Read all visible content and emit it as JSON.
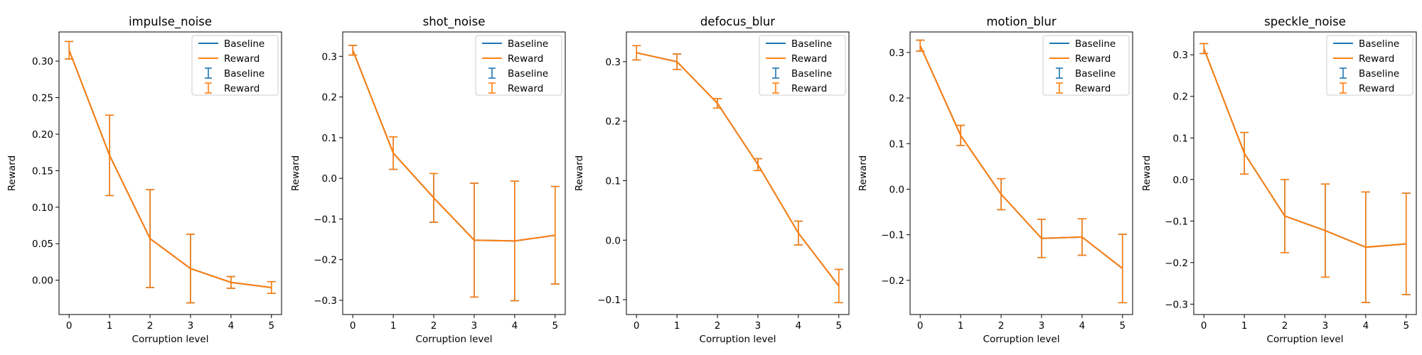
{
  "colors": {
    "baseline": "#1f77b4",
    "reward": "#ff7f0e"
  },
  "chart_data": [
    {
      "type": "line",
      "title": "impulse_noise",
      "xlabel": "Corruption level",
      "ylabel": "Reward",
      "x": [
        0,
        1,
        2,
        3,
        4,
        5
      ],
      "xlim": [
        -0.25,
        5.25
      ],
      "ylim": [
        -0.047,
        0.34
      ],
      "yticks": [
        0.0,
        0.05,
        0.1,
        0.15,
        0.2,
        0.25,
        0.3
      ],
      "ytick_labels": [
        "0.00",
        "0.05",
        "0.10",
        "0.15",
        "0.20",
        "0.25",
        "0.30"
      ],
      "legend": {
        "position": "top-right",
        "entries": [
          "Baseline",
          "Reward",
          "Baseline",
          "Reward"
        ]
      },
      "series": [
        {
          "name": "Baseline",
          "y": [
            0.315,
            0.171,
            0.057,
            0.016,
            -0.003,
            -0.01
          ],
          "err": [
            0.012,
            0.055,
            0.067,
            0.047,
            0.008,
            0.008
          ]
        },
        {
          "name": "Reward",
          "y": [
            0.315,
            0.171,
            0.057,
            0.016,
            -0.003,
            -0.01
          ],
          "err": [
            0.012,
            0.055,
            0.067,
            0.047,
            0.008,
            0.008
          ]
        }
      ]
    },
    {
      "type": "line",
      "title": "shot_noise",
      "xlabel": "Corruption level",
      "ylabel": "Reward",
      "x": [
        0,
        1,
        2,
        3,
        4,
        5
      ],
      "xlim": [
        -0.25,
        5.25
      ],
      "ylim": [
        -0.335,
        0.36
      ],
      "yticks": [
        -0.3,
        -0.2,
        -0.1,
        0.0,
        0.1,
        0.2,
        0.3
      ],
      "ytick_labels": [
        "−0.3",
        "−0.2",
        "−0.1",
        "0.0",
        "0.1",
        "0.2",
        "0.3"
      ],
      "legend": {
        "position": "top-right",
        "entries": [
          "Baseline",
          "Reward",
          "Baseline",
          "Reward"
        ]
      },
      "series": [
        {
          "name": "Baseline",
          "y": [
            0.315,
            0.062,
            -0.048,
            -0.152,
            -0.154,
            -0.14
          ],
          "err": [
            0.012,
            0.04,
            0.06,
            0.14,
            0.147,
            0.12
          ]
        },
        {
          "name": "Reward",
          "y": [
            0.315,
            0.062,
            -0.048,
            -0.152,
            -0.154,
            -0.14
          ],
          "err": [
            0.012,
            0.04,
            0.06,
            0.14,
            0.147,
            0.12
          ]
        }
      ]
    },
    {
      "type": "line",
      "title": "defocus_blur",
      "xlabel": "Corruption level",
      "ylabel": "Reward",
      "x": [
        0,
        1,
        2,
        3,
        4,
        5
      ],
      "xlim": [
        -0.25,
        5.25
      ],
      "ylim": [
        -0.125,
        0.35
      ],
      "yticks": [
        -0.1,
        0.0,
        0.1,
        0.2,
        0.3
      ],
      "ytick_labels": [
        "−0.1",
        "0.0",
        "0.1",
        "0.2",
        "0.3"
      ],
      "legend": {
        "position": "top-right",
        "entries": [
          "Baseline",
          "Reward",
          "Baseline",
          "Reward"
        ]
      },
      "series": [
        {
          "name": "Baseline",
          "y": [
            0.315,
            0.3,
            0.23,
            0.127,
            0.012,
            -0.077
          ],
          "err": [
            0.012,
            0.013,
            0.008,
            0.01,
            0.02,
            0.028
          ]
        },
        {
          "name": "Reward",
          "y": [
            0.315,
            0.3,
            0.23,
            0.127,
            0.012,
            -0.077
          ],
          "err": [
            0.012,
            0.013,
            0.008,
            0.01,
            0.02,
            0.028
          ]
        }
      ]
    },
    {
      "type": "line",
      "title": "motion_blur",
      "xlabel": "Corruption level",
      "ylabel": "Reward",
      "x": [
        0,
        1,
        2,
        3,
        4,
        5
      ],
      "xlim": [
        -0.25,
        5.25
      ],
      "ylim": [
        -0.275,
        0.345
      ],
      "yticks": [
        -0.2,
        -0.1,
        0.0,
        0.1,
        0.2,
        0.3
      ],
      "ytick_labels": [
        "−0.2",
        "−0.1",
        "0.0",
        "0.1",
        "0.2",
        "0.3"
      ],
      "legend": {
        "position": "top-right",
        "entries": [
          "Baseline",
          "Reward",
          "Baseline",
          "Reward"
        ]
      },
      "series": [
        {
          "name": "Baseline",
          "y": [
            0.315,
            0.118,
            -0.011,
            -0.108,
            -0.105,
            -0.174
          ],
          "err": [
            0.012,
            0.022,
            0.034,
            0.042,
            0.04,
            0.075
          ]
        },
        {
          "name": "Reward",
          "y": [
            0.315,
            0.118,
            -0.011,
            -0.108,
            -0.105,
            -0.174
          ],
          "err": [
            0.012,
            0.022,
            0.034,
            0.042,
            0.04,
            0.075
          ]
        }
      ]
    },
    {
      "type": "line",
      "title": "speckle_noise",
      "xlabel": "Corruption level",
      "ylabel": "Reward",
      "x": [
        0,
        1,
        2,
        3,
        4,
        5
      ],
      "xlim": [
        -0.25,
        5.25
      ],
      "ylim": [
        -0.325,
        0.355
      ],
      "yticks": [
        -0.3,
        -0.2,
        -0.1,
        0.0,
        0.1,
        0.2,
        0.3
      ],
      "ytick_labels": [
        "−0.3",
        "−0.2",
        "−0.1",
        "0.0",
        "0.1",
        "0.2",
        "0.3"
      ],
      "legend": {
        "position": "top-right",
        "entries": [
          "Baseline",
          "Reward",
          "Baseline",
          "Reward"
        ]
      },
      "series": [
        {
          "name": "Baseline",
          "y": [
            0.315,
            0.063,
            -0.088,
            -0.123,
            -0.163,
            -0.155
          ],
          "err": [
            0.012,
            0.05,
            0.088,
            0.112,
            0.133,
            0.122
          ]
        },
        {
          "name": "Reward",
          "y": [
            0.315,
            0.063,
            -0.088,
            -0.123,
            -0.163,
            -0.155
          ],
          "err": [
            0.012,
            0.05,
            0.088,
            0.112,
            0.133,
            0.122
          ]
        }
      ]
    }
  ]
}
